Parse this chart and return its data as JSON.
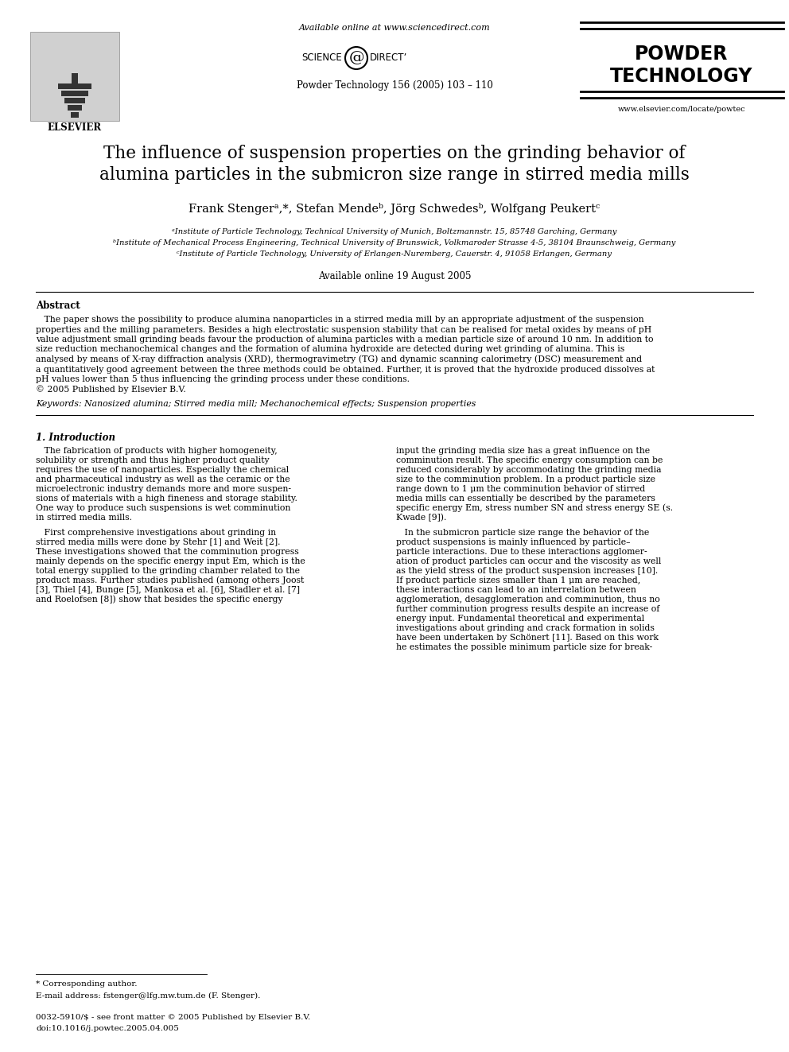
{
  "bg_color": "#ffffff",
  "header": {
    "available_online": "Available online at www.sciencedirect.com",
    "journal_info": "Powder Technology 156 (2005) 103 – 110",
    "journal_name_line1": "POWDER",
    "journal_name_line2": "TECHNOLOGY",
    "website": "www.elsevier.com/locate/powtec"
  },
  "title_line1": "The influence of suspension properties on the grinding behavior of",
  "title_line2": "alumina particles in the submicron size range in stirred media mills",
  "authors": "Frank Stengerᵃ,*, Stefan Mendeᵇ, Jörg Schwedesᵇ, Wolfgang Peukertᶜ",
  "affiliations": [
    "ᵃInstitute of Particle Technology, Technical University of Munich, Boltzmannstr. 15, 85748 Garching, Germany",
    "ᵇInstitute of Mechanical Process Engineering, Technical University of Brunswick, Volkmaroder Strasse 4-5, 38104 Braunschweig, Germany",
    "ᶜInstitute of Particle Technology, University of Erlangen-Nuremberg, Cauerstr. 4, 91058 Erlangen, Germany"
  ],
  "available_online_date": "Available online 19 August 2005",
  "abstract_heading": "Abstract",
  "abstract_lines": [
    "   The paper shows the possibility to produce alumina nanoparticles in a stirred media mill by an appropriate adjustment of the suspension",
    "properties and the milling parameters. Besides a high electrostatic suspension stability that can be realised for metal oxides by means of pH",
    "value adjustment small grinding beads favour the production of alumina particles with a median particle size of around 10 nm. In addition to",
    "size reduction mechanochemical changes and the formation of alumina hydroxide are detected during wet grinding of alumina. This is",
    "analysed by means of X-ray diffraction analysis (XRD), thermogravimetry (TG) and dynamic scanning calorimetry (DSC) measurement and",
    "a quantitatively good agreement between the three methods could be obtained. Further, it is proved that the hydroxide produced dissolves at",
    "pH values lower than 5 thus influencing the grinding process under these conditions.",
    "© 2005 Published by Elsevier B.V."
  ],
  "keywords_line": "Keywords: Nanosized alumina; Stirred media mill; Mechanochemical effects; Suspension properties",
  "section1_heading": "1. Introduction",
  "col1_lines": [
    "   The fabrication of products with higher homogeneity,",
    "solubility or strength and thus higher product quality",
    "requires the use of nanoparticles. Especially the chemical",
    "and pharmaceutical industry as well as the ceramic or the",
    "microelectronic industry demands more and more suspen-",
    "sions of materials with a high fineness and storage stability.",
    "One way to produce such suspensions is wet comminution",
    "in stirred media mills.",
    "",
    "   First comprehensive investigations about grinding in",
    "stirred media mills were done by Stehr [1] and Weit [2].",
    "These investigations showed that the comminution progress",
    "mainly depends on the specific energy input Em, which is the",
    "total energy supplied to the grinding chamber related to the",
    "product mass. Further studies published (among others Joost",
    "[3], Thiel [4], Bunge [5], Mankosa et al. [6], Stadler et al. [7]",
    "and Roelofsen [8]) show that besides the specific energy"
  ],
  "col2_lines": [
    "input the grinding media size has a great influence on the",
    "comminution result. The specific energy consumption can be",
    "reduced considerably by accommodating the grinding media",
    "size to the comminution problem. In a product particle size",
    "range down to 1 μm the comminution behavior of stirred",
    "media mills can essentially be described by the parameters",
    "specific energy Em, stress number SN and stress energy SE (s.",
    "Kwade [9]).",
    "",
    "   In the submicron particle size range the behavior of the",
    "product suspensions is mainly influenced by particle–",
    "particle interactions. Due to these interactions agglomer-",
    "ation of product particles can occur and the viscosity as well",
    "as the yield stress of the product suspension increases [10].",
    "If product particle sizes smaller than 1 μm are reached,",
    "these interactions can lead to an interrelation between",
    "agglomeration, desagglomeration and comminution, thus no",
    "further comminution progress results despite an increase of",
    "energy input. Fundamental theoretical and experimental",
    "investigations about grinding and crack formation in solids",
    "have been undertaken by Schönert [11]. Based on this work",
    "he estimates the possible minimum particle size for break-"
  ],
  "footnote_star": "* Corresponding author.",
  "footnote_email": "E-mail address: fstenger@lfg.mw.tum.de (F. Stenger).",
  "footer_left": "0032-5910/$ - see front matter © 2005 Published by Elsevier B.V.",
  "footer_doi": "doi:10.1016/j.powtec.2005.04.005"
}
